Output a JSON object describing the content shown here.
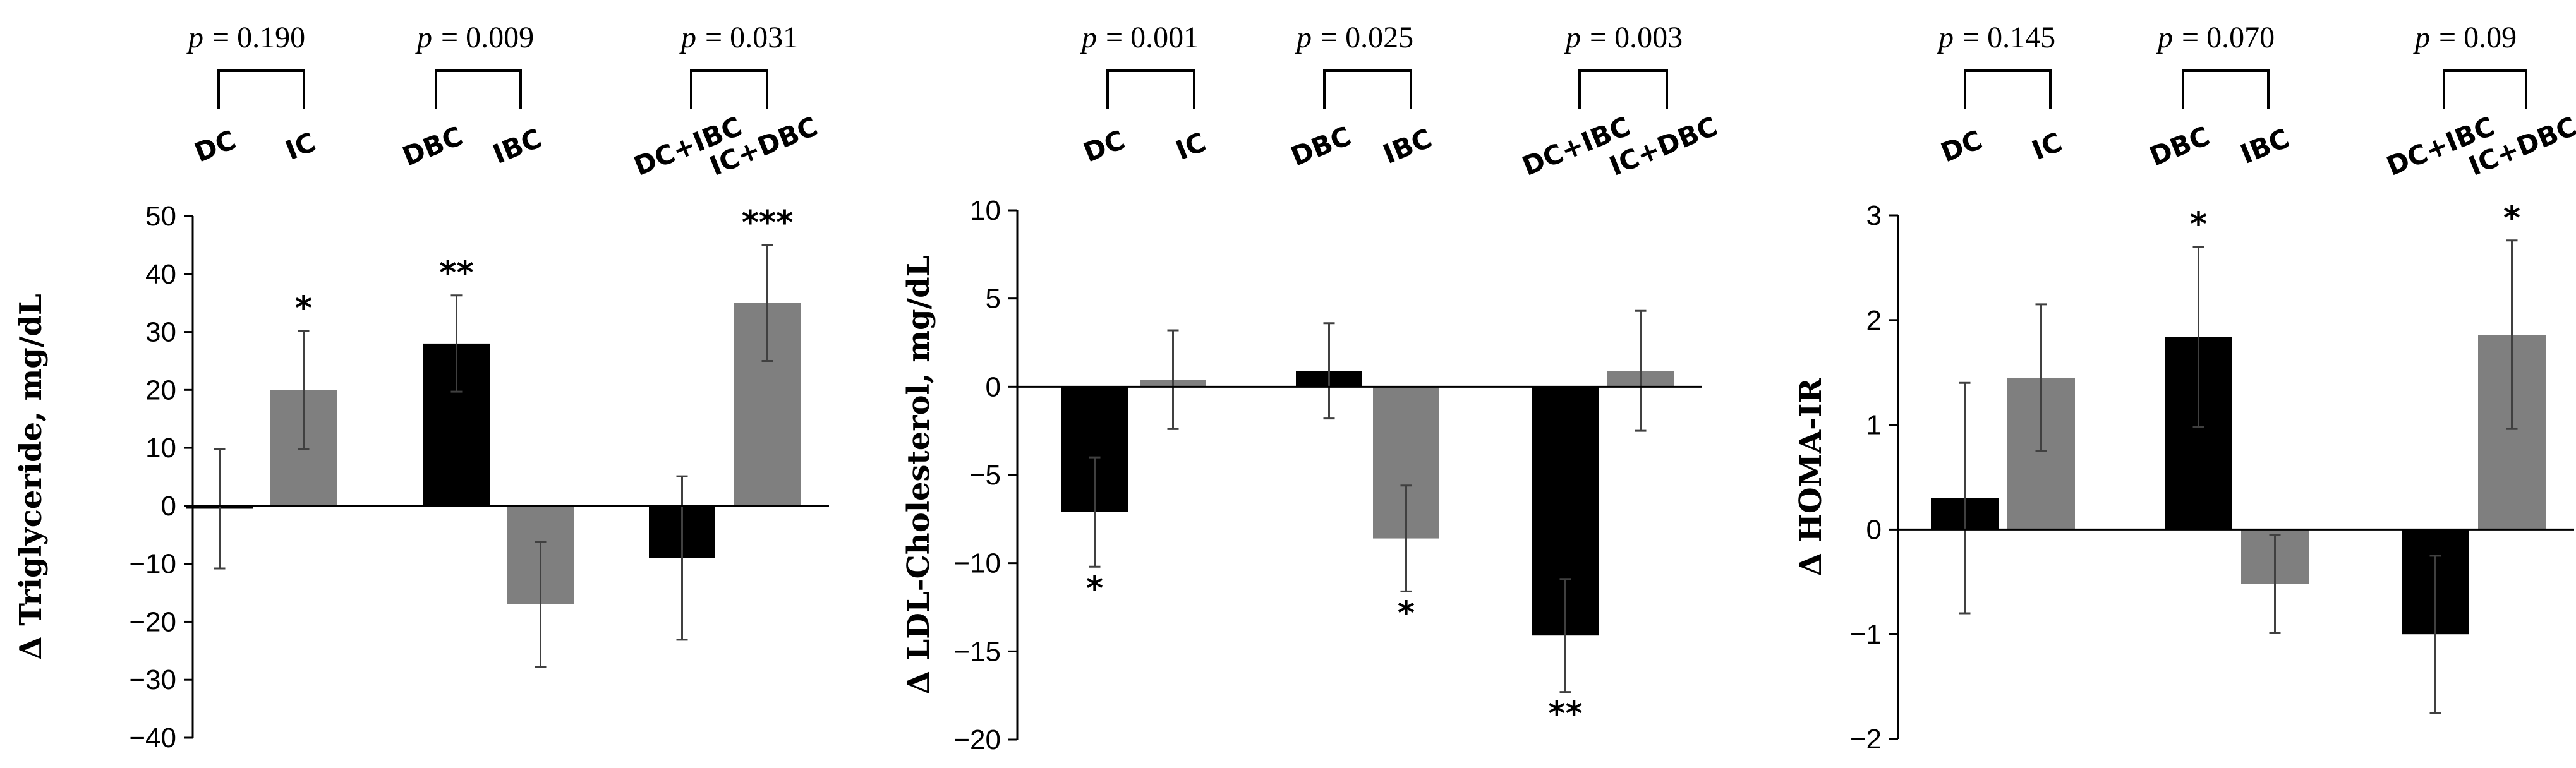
{
  "colors": {
    "dark_bar": "#000000",
    "light_bar": "#7f7f7f",
    "axis": "#000000",
    "error": "#404040"
  },
  "chart_data": [
    {
      "type": "bar",
      "ylabel": "Δ Triglyceride, mg/dL",
      "ylim": [
        -40,
        50
      ],
      "yticks": [
        50,
        40,
        30,
        20,
        10,
        0,
        -10,
        -20,
        -30,
        -40
      ],
      "ytick_labels": [
        "50",
        "40",
        "30",
        "20",
        "10",
        "0",
        "−10",
        "−20",
        "−30",
        "−40"
      ],
      "categories": [
        "DC",
        "IC",
        "DBC",
        "IBC",
        "DC+IBC",
        "IC+DBC"
      ],
      "values": [
        -0.5,
        20,
        28,
        -17,
        -9,
        35
      ],
      "errors": [
        10.3,
        10.2,
        8.3,
        10.8,
        14.1,
        10
      ],
      "colors": [
        "dark",
        "light",
        "dark",
        "light",
        "dark",
        "light"
      ],
      "significance": [
        "",
        "*",
        "**",
        "",
        "",
        "***"
      ],
      "comparisons": [
        {
          "p_label": "p",
          "p_value": "= 0.190",
          "pair": [
            0,
            1
          ]
        },
        {
          "p_label": "p",
          "p_value": "= 0.009",
          "pair": [
            2,
            3
          ]
        },
        {
          "p_label": "p",
          "p_value": "= 0.031",
          "pair": [
            4,
            5
          ]
        }
      ]
    },
    {
      "type": "bar",
      "ylabel": "Δ LDL-Cholesterol, mg/dL",
      "ylim": [
        -20,
        10
      ],
      "yticks": [
        10,
        5,
        0,
        -5,
        -10,
        -15,
        -20
      ],
      "ytick_labels": [
        "10",
        "5",
        "0",
        "−5",
        "−10",
        "−15",
        "−20"
      ],
      "categories": [
        "DC",
        "IC",
        "DBC",
        "IBC",
        "DC+IBC",
        "IC+DBC"
      ],
      "values": [
        -7.1,
        0.4,
        0.9,
        -8.6,
        -14.1,
        0.9
      ],
      "errors": [
        3.1,
        2.8,
        2.7,
        3,
        3.2,
        3.4
      ],
      "colors": [
        "dark",
        "light",
        "dark",
        "light",
        "dark",
        "light"
      ],
      "significance": [
        "*",
        "",
        "",
        "*",
        "**",
        ""
      ],
      "comparisons": [
        {
          "p_label": "p",
          "p_value": "= 0.001",
          "pair": [
            0,
            1
          ]
        },
        {
          "p_label": "p",
          "p_value": "= 0.025",
          "pair": [
            2,
            3
          ]
        },
        {
          "p_label": "p",
          "p_value": "= 0.003",
          "pair": [
            4,
            5
          ]
        }
      ]
    },
    {
      "type": "bar",
      "ylabel": "Δ HOMA-IR",
      "ylim": [
        -2,
        3
      ],
      "yticks": [
        3,
        2,
        1,
        0,
        -1,
        -2
      ],
      "ytick_labels": [
        "3",
        "2",
        "1",
        "0",
        "−1",
        "−2"
      ],
      "categories": [
        "DC",
        "IC",
        "DBC",
        "IBC",
        "DC+IBC",
        "IC+DBC"
      ],
      "values": [
        0.3,
        1.45,
        1.84,
        -0.52,
        -1,
        1.86
      ],
      "errors": [
        1.1,
        0.7,
        0.86,
        0.47,
        0.75,
        0.9
      ],
      "colors": [
        "dark",
        "light",
        "dark",
        "light",
        "dark",
        "light"
      ],
      "significance": [
        "",
        "",
        "*",
        "",
        "",
        "*"
      ],
      "comparisons": [
        {
          "p_label": "p",
          "p_value": "= 0.145",
          "pair": [
            0,
            1
          ]
        },
        {
          "p_label": "p",
          "p_value": "= 0.070",
          "pair": [
            2,
            3
          ]
        },
        {
          "p_label": "p",
          "p_value": "= 0.09",
          "pair": [
            4,
            5
          ]
        }
      ]
    }
  ]
}
